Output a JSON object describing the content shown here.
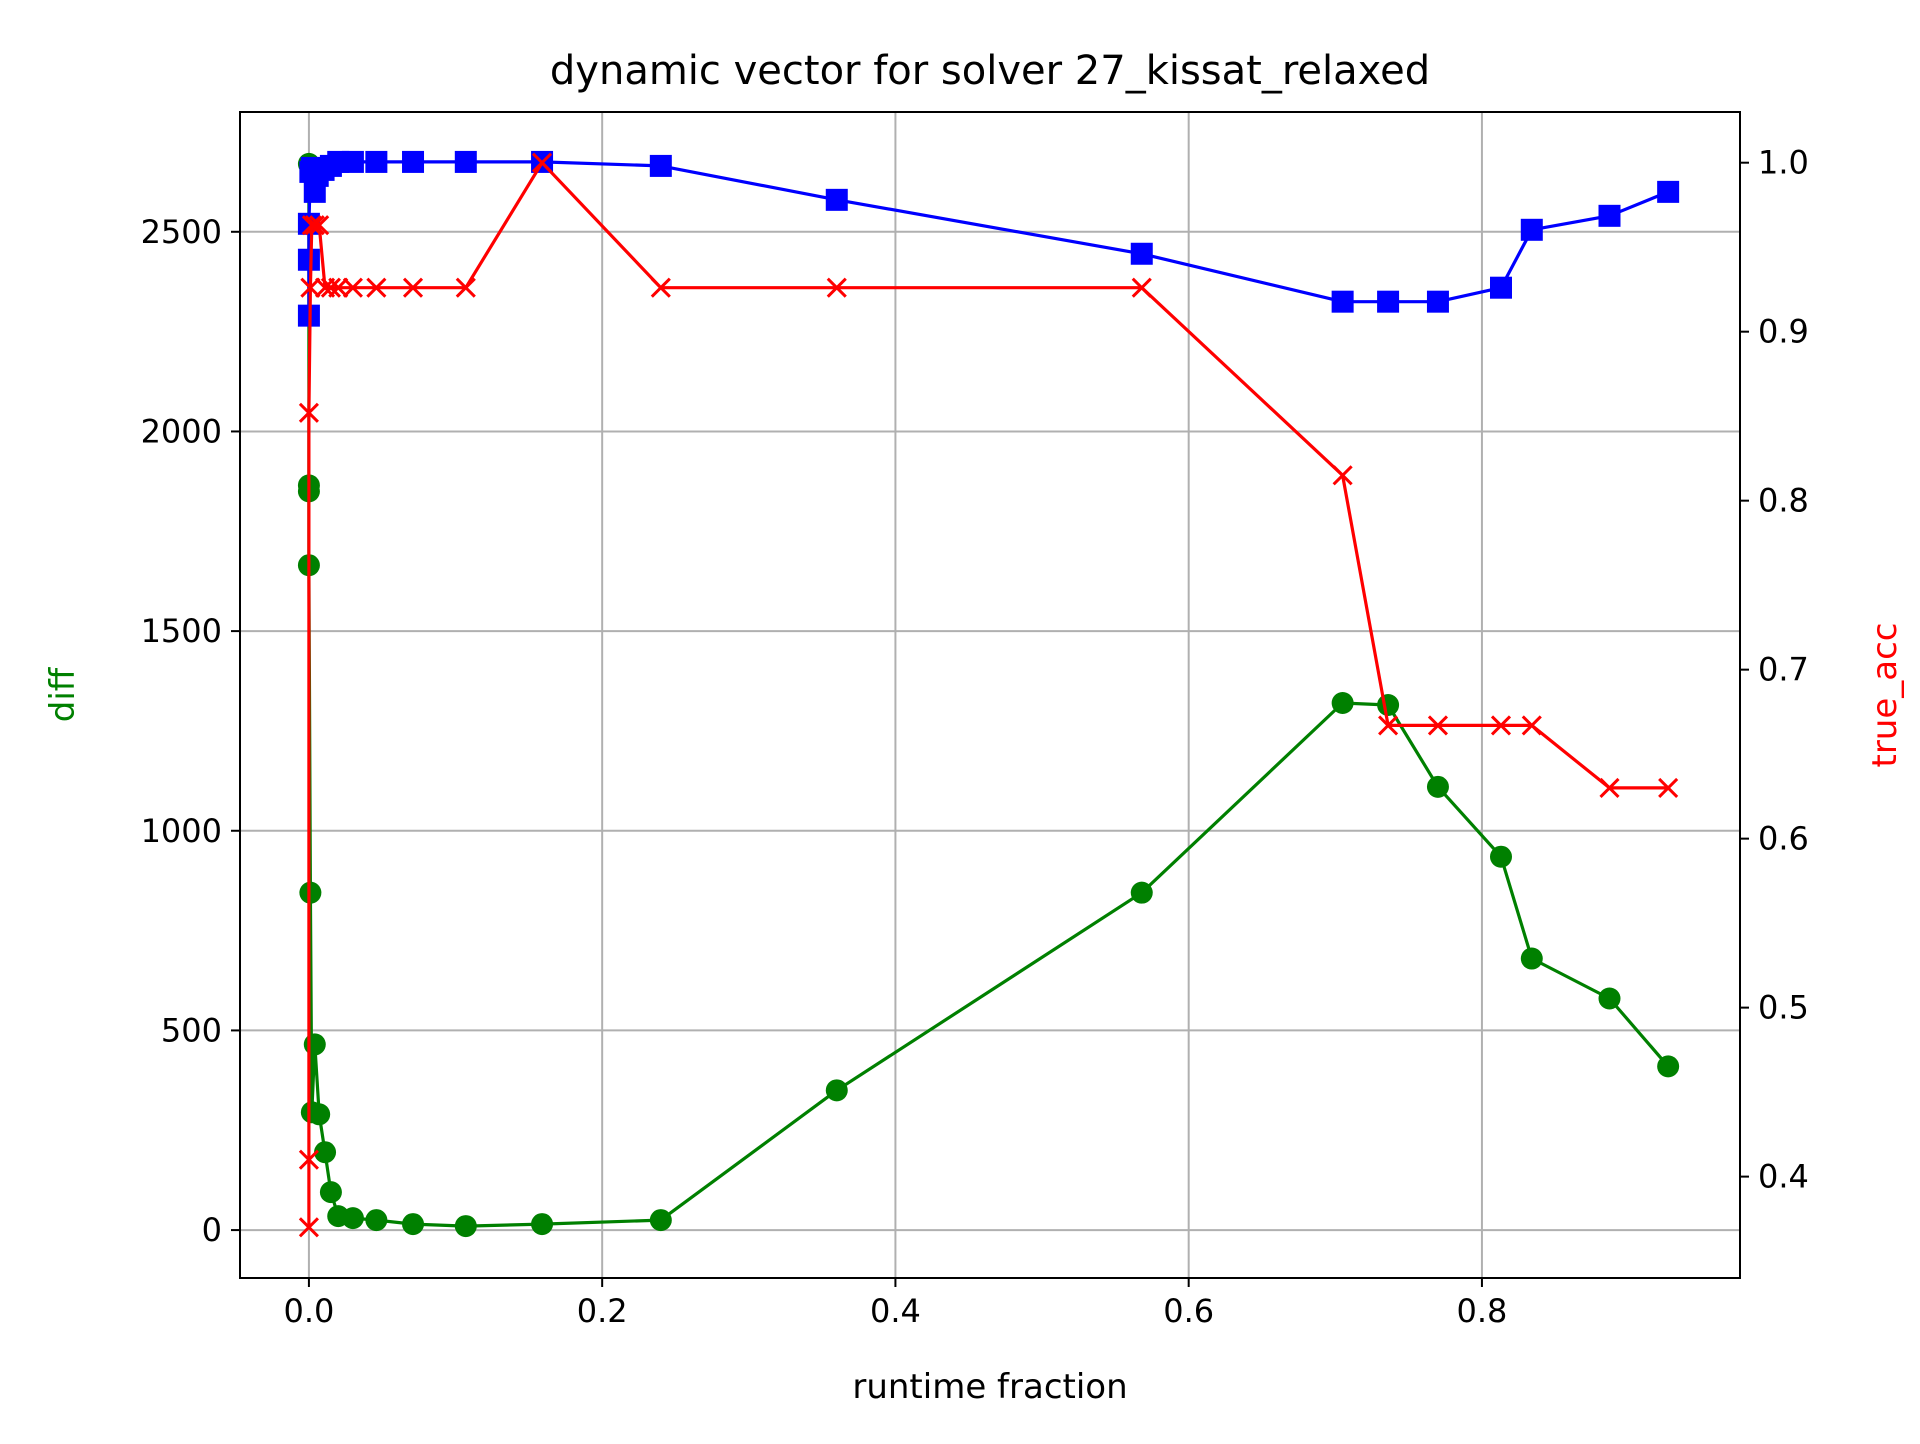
{
  "chart_data": {
    "type": "line",
    "title": "dynamic vector for solver 27_kissat_relaxed",
    "xlabel": "runtime fraction",
    "ylabel_left": "diff",
    "ylabel_right": "true_acc",
    "xlim": [
      -0.047,
      0.976
    ],
    "ylim_left": [
      -120,
      2800
    ],
    "ylim_right": [
      0.34,
      1.03
    ],
    "xticks": [
      0.0,
      0.2,
      0.4,
      0.6,
      0.8
    ],
    "xtick_labels": [
      "0.0",
      "0.2",
      "0.4",
      "0.6",
      "0.8"
    ],
    "yticks_left": [
      0,
      500,
      1000,
      1500,
      2000,
      2500
    ],
    "ytick_labels_left": [
      "0",
      "500",
      "1000",
      "1500",
      "2000",
      "2500"
    ],
    "yticks_right": [
      0.4,
      0.5,
      0.6,
      0.7,
      0.8,
      0.9,
      1.0
    ],
    "ytick_labels_right": [
      "0.4",
      "0.5",
      "0.6",
      "0.7",
      "0.8",
      "0.9",
      "1.0"
    ],
    "grid": true,
    "series": [
      {
        "key": "green",
        "axis": "left",
        "marker": "circle",
        "color": "#008000",
        "x": [
          0.0,
          0.0,
          0.0,
          0.0,
          0.001,
          0.002,
          0.004,
          0.007,
          0.011,
          0.015,
          0.02,
          0.03,
          0.046,
          0.071,
          0.107,
          0.159,
          0.24,
          0.36,
          0.568,
          0.705,
          0.736,
          0.77,
          0.813,
          0.834,
          0.887,
          0.927
        ],
        "y": [
          2670,
          1865,
          1850,
          1665,
          845,
          295,
          465,
          290,
          195,
          95,
          35,
          30,
          25,
          15,
          10,
          15,
          25,
          350,
          845,
          1320,
          1315,
          1110,
          935,
          680,
          580,
          410
        ]
      },
      {
        "key": "blue",
        "axis": "left",
        "marker": "square",
        "color": "#0000ff",
        "x": [
          0.0,
          0.0,
          0.0,
          0.001,
          0.002,
          0.004,
          0.006,
          0.01,
          0.015,
          0.02,
          0.03,
          0.046,
          0.071,
          0.107,
          0.159,
          0.24,
          0.36,
          0.568,
          0.705,
          0.736,
          0.77,
          0.813,
          0.834,
          0.887,
          0.927
        ],
        "y": [
          2290,
          2430,
          2520,
          2650,
          2660,
          2600,
          2640,
          2655,
          2665,
          2675,
          2675,
          2675,
          2675,
          2675,
          2675,
          2665,
          2580,
          2445,
          2325,
          2325,
          2325,
          2360,
          2505,
          2540,
          2600
        ]
      },
      {
        "key": "red",
        "axis": "right",
        "marker": "x",
        "color": "#ff0000",
        "x": [
          0.0,
          0.0,
          0.0,
          0.001,
          0.002,
          0.004,
          0.007,
          0.011,
          0.015,
          0.02,
          0.03,
          0.046,
          0.071,
          0.107,
          0.159,
          0.24,
          0.36,
          0.568,
          0.705,
          0.736,
          0.77,
          0.813,
          0.834,
          0.887,
          0.927
        ],
        "y": [
          0.37,
          0.41,
          0.852,
          0.926,
          0.963,
          0.963,
          0.963,
          0.926,
          0.926,
          0.926,
          0.926,
          0.926,
          0.926,
          0.926,
          1.0,
          0.926,
          0.926,
          0.926,
          0.815,
          0.667,
          0.667,
          0.667,
          0.667,
          0.63,
          0.63
        ]
      }
    ]
  }
}
